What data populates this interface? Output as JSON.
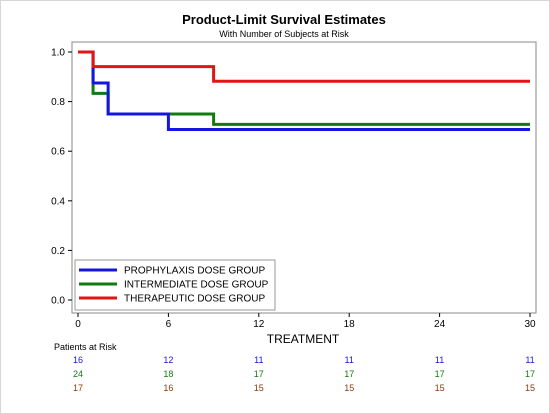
{
  "chart_data": {
    "type": "line",
    "title": "Product-Limit Survival Estimates",
    "subtitle": "With Number of Subjects at Risk",
    "xlabel": "TREATMENT",
    "ylabel": "",
    "xlim": [
      0,
      30
    ],
    "ylim": [
      0,
      1
    ],
    "x_ticks": [
      "0",
      "6",
      "12",
      "18",
      "24",
      "30"
    ],
    "y_ticks": [
      "0.0",
      "0.2",
      "0.4",
      "0.6",
      "0.8",
      "1.0"
    ],
    "step": true,
    "legend_position": "bottom-left",
    "series": [
      {
        "name": "PROPHYLAXIS DOSE GROUP",
        "color": "#1515e0",
        "x": [
          0,
          1,
          2,
          6,
          30
        ],
        "y": [
          1.0,
          0.875,
          0.75,
          0.6875,
          0.6875
        ]
      },
      {
        "name": "INTERMEDIATE DOSE GROUP",
        "color": "#127a12",
        "x": [
          0,
          1,
          2,
          9,
          30
        ],
        "y": [
          1.0,
          0.833,
          0.75,
          0.708,
          0.708
        ]
      },
      {
        "name": "THERAPEUTIC DOSE GROUP",
        "color": "#e01515",
        "x": [
          0,
          1,
          9,
          30
        ],
        "y": [
          1.0,
          0.941,
          0.882,
          0.882
        ]
      }
    ],
    "risk_table": {
      "label": "Patients at Risk",
      "times": [
        0,
        6,
        12,
        18,
        24,
        30
      ],
      "rows": [
        {
          "color": "#1515e0",
          "values": [
            "16",
            "12",
            "11",
            "11",
            "11",
            "11"
          ]
        },
        {
          "color": "#127a12",
          "values": [
            "24",
            "18",
            "17",
            "17",
            "17",
            "17"
          ]
        },
        {
          "color": "#8b3a0a",
          "values": [
            "17",
            "16",
            "15",
            "15",
            "15",
            "15"
          ]
        }
      ]
    }
  }
}
